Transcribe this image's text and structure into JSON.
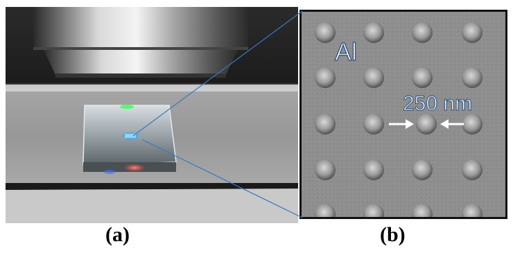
{
  "panel_a": {
    "caption": "(a)"
  },
  "panel_b": {
    "caption": "(b)",
    "material_label": "Al",
    "scale_label": "250 nm"
  },
  "colors": {
    "sem_background": "#8e8e8e",
    "label_fill": "#ffffff",
    "label_outline": "#3a5a85",
    "connector_line": "#3a78c0",
    "highlight_blue": "#3aa8ff",
    "highlight_green": "#44ff66"
  }
}
